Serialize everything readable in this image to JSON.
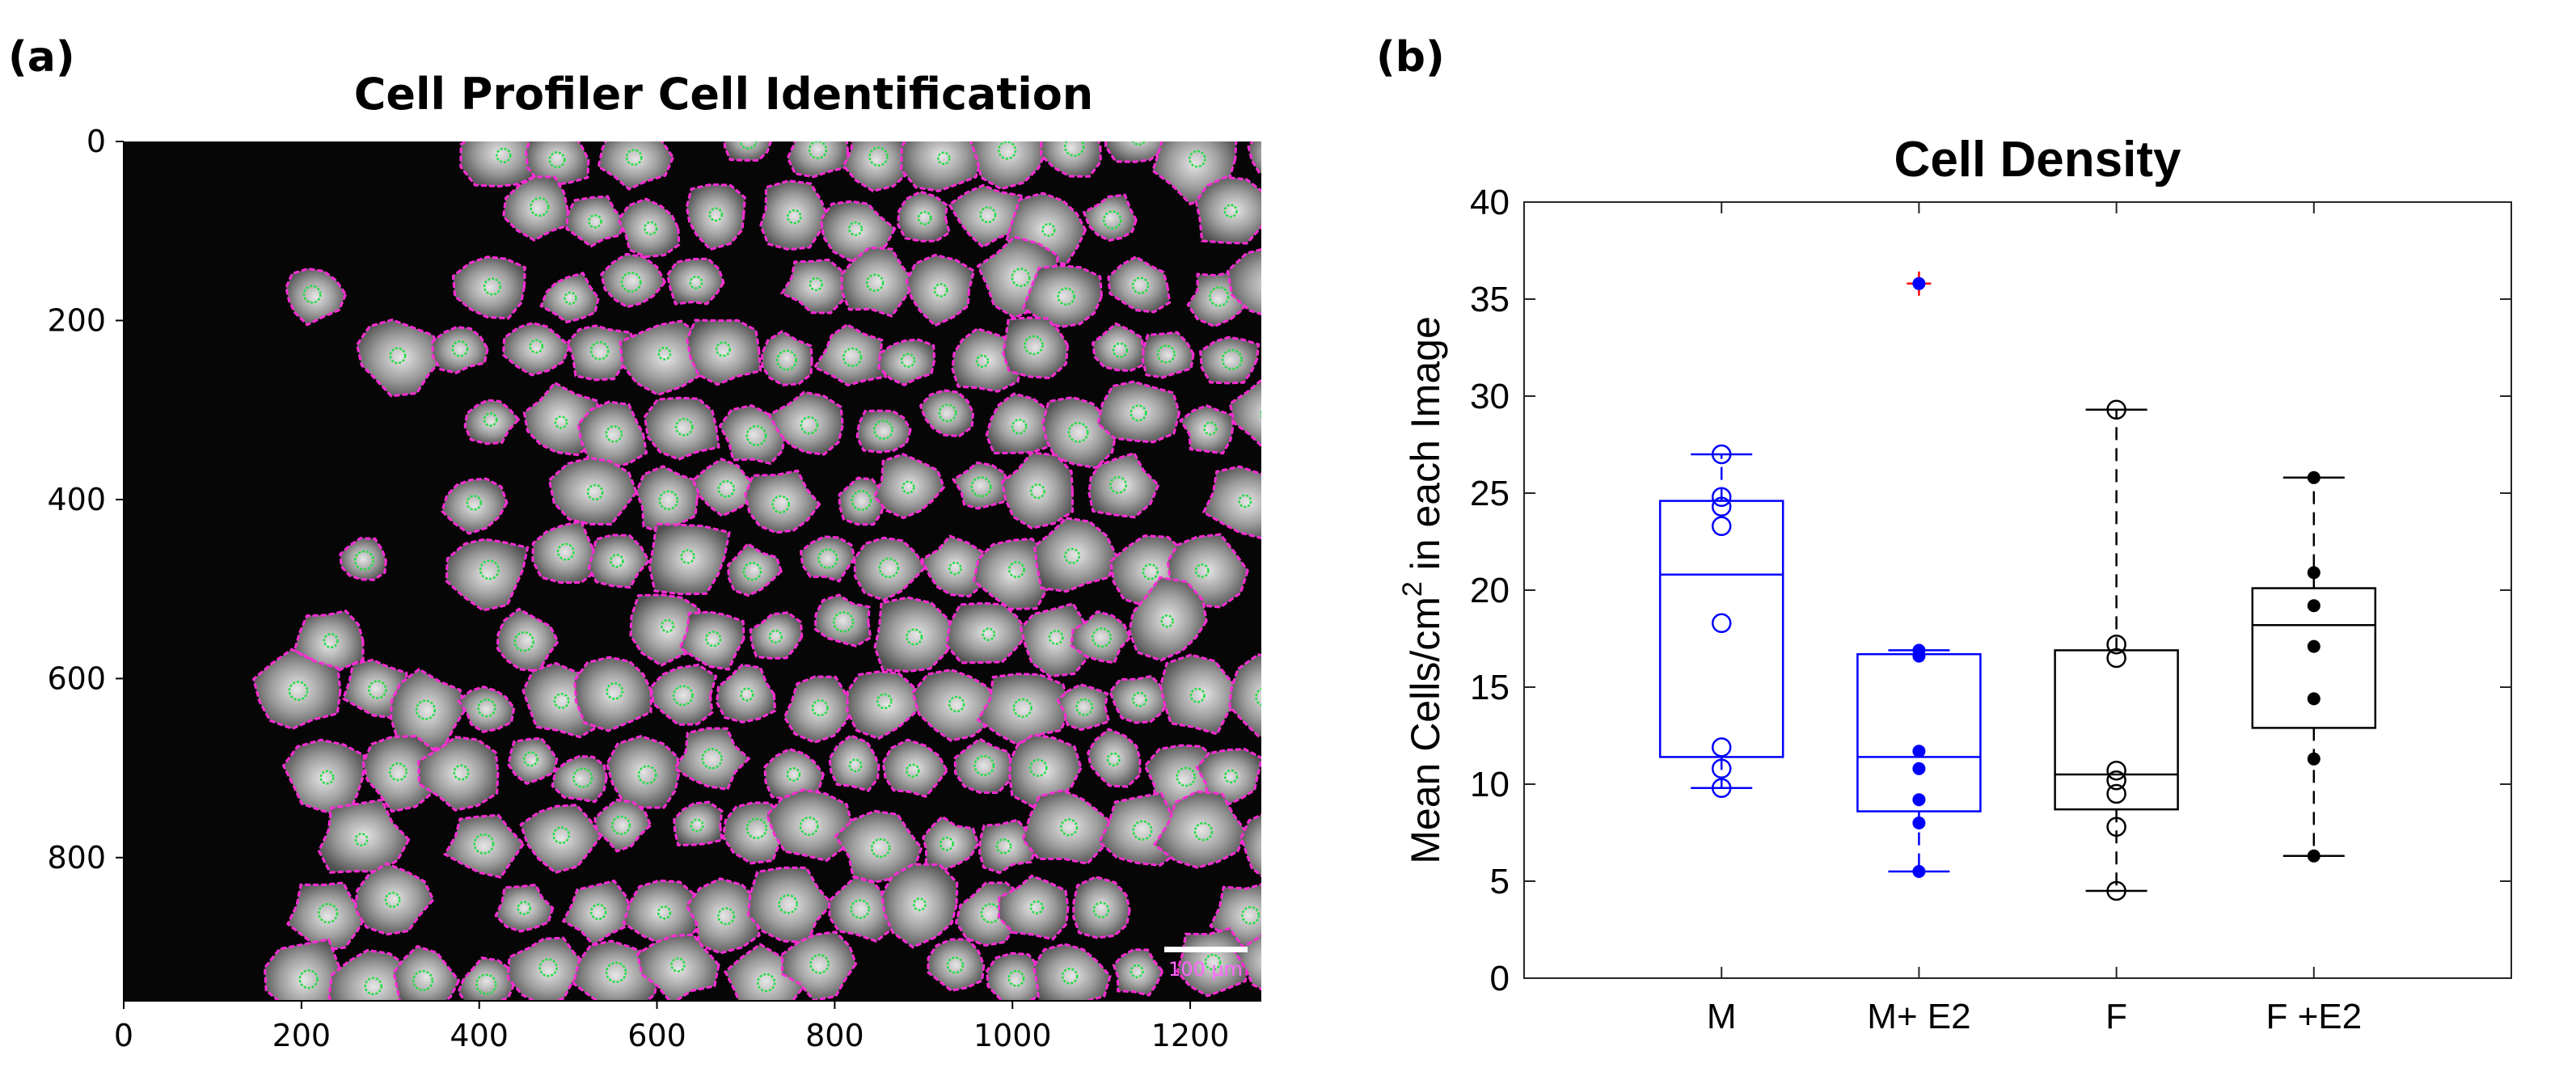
{
  "panel_a": {
    "label": "(a)",
    "title": "Cell Profiler Cell Identification",
    "x_ticks": [
      "0",
      "200",
      "400",
      "600",
      "800",
      "1000",
      "1200"
    ],
    "y_ticks": [
      "0",
      "200",
      "400",
      "600",
      "800"
    ],
    "scale_bar_label": "100 µm",
    "outline_color": "#ff2bd6",
    "center_color": "#22dd44"
  },
  "panel_b": {
    "label": "(b)"
  },
  "chart_data": {
    "type": "box",
    "title": "Cell Density",
    "ylabel_parts": [
      "Mean Cells/cm",
      "2",
      " in each Image"
    ],
    "xlabel": "",
    "ylim": [
      0,
      40
    ],
    "y_ticks": [
      0,
      5,
      10,
      15,
      20,
      25,
      30,
      35,
      40
    ],
    "categories": [
      "M",
      "M+ E2",
      "F",
      "F +E2"
    ],
    "series": [
      {
        "name": "M",
        "color": "#0000ff",
        "marker": "open-circle",
        "points": [
          27.0,
          24.8,
          24.3,
          23.3,
          18.3,
          11.9,
          10.8,
          9.8
        ],
        "q1": 11.4,
        "median": 20.8,
        "q3": 24.6,
        "whisker_low": 9.8,
        "whisker_high": 27.0,
        "outliers": []
      },
      {
        "name": "M+ E2",
        "color": "#0000ff",
        "marker": "filled-dot",
        "points": [
          16.9,
          16.6,
          11.7,
          10.8,
          9.2,
          8.0,
          5.5
        ],
        "q1": 8.6,
        "median": 11.4,
        "q3": 16.7,
        "whisker_low": 5.5,
        "whisker_high": 16.9,
        "outliers": [
          35.8
        ]
      },
      {
        "name": "F",
        "color": "#000000",
        "marker": "open-circle",
        "points": [
          29.3,
          17.2,
          16.5,
          10.7,
          10.2,
          9.5,
          7.8,
          4.5
        ],
        "q1": 8.7,
        "median": 10.5,
        "q3": 16.9,
        "whisker_low": 4.5,
        "whisker_high": 29.3,
        "outliers": []
      },
      {
        "name": "F +E2",
        "color": "#000000",
        "marker": "filled-dot",
        "points": [
          25.8,
          20.9,
          19.2,
          17.1,
          14.4,
          11.3,
          6.3
        ],
        "q1": 12.9,
        "median": 18.2,
        "q3": 20.1,
        "whisker_low": 6.3,
        "whisker_high": 25.8,
        "outliers": []
      }
    ],
    "outlier_color": "#ff0000"
  }
}
